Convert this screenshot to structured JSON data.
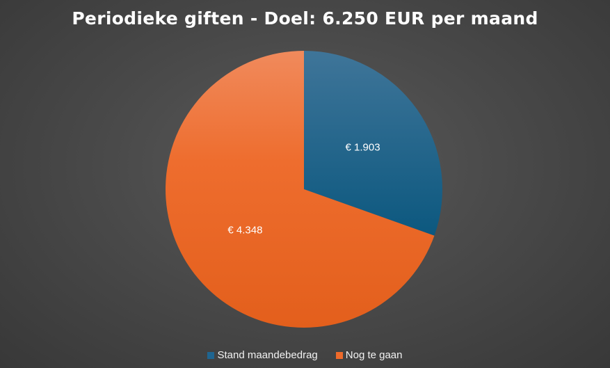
{
  "chart_data": {
    "type": "pie",
    "title": "Periodieke giften - Doel: 6.250 EUR per maand",
    "slices": [
      {
        "label": "Stand maandebedrag",
        "value": 1903,
        "data_label": "€ 1.903",
        "color": "#1f6590"
      },
      {
        "label": "Nog te gaan",
        "value": 4348,
        "data_label": "€ 4.348",
        "color": "#ee6a2a"
      }
    ],
    "legend_position": "bottom"
  }
}
